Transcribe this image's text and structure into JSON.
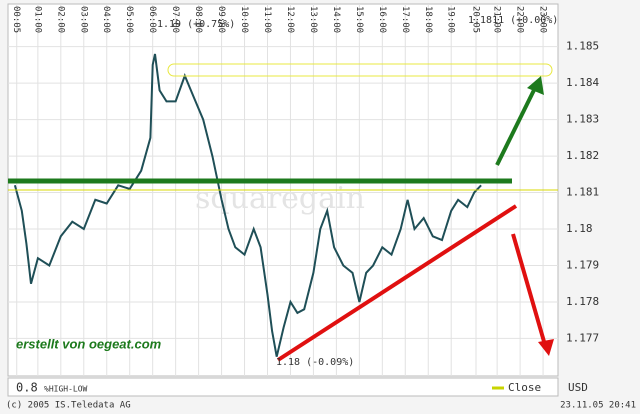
{
  "chart_data": {
    "type": "line",
    "x": [
      0,
      0.3,
      0.5,
      0.7,
      1.0,
      1.5,
      2.0,
      2.5,
      3.0,
      3.5,
      4.0,
      4.5,
      5.0,
      5.5,
      5.9,
      6.0,
      6.1,
      6.3,
      6.6,
      7.0,
      7.4,
      7.8,
      8.2,
      8.6,
      9.0,
      9.3,
      9.6,
      10.0,
      10.4,
      10.7,
      11.0,
      11.2,
      11.4,
      11.7,
      12.0,
      12.3,
      12.6,
      13.0,
      13.3,
      13.6,
      13.9,
      14.3,
      14.7,
      15.0,
      15.3,
      15.6,
      16.0,
      16.4,
      16.8,
      17.1,
      17.4,
      17.8,
      18.2,
      18.6,
      19.0,
      19.3,
      19.7,
      20.0,
      20.3
    ],
    "series": [
      {
        "name": "Close",
        "color": "#1f4f57",
        "values": [
          1.1812,
          1.1805,
          1.1796,
          1.1785,
          1.1792,
          1.179,
          1.1798,
          1.1802,
          1.18,
          1.1808,
          1.1807,
          1.1812,
          1.1811,
          1.1816,
          1.1825,
          1.1845,
          1.1848,
          1.1838,
          1.1835,
          1.1835,
          1.1842,
          1.1836,
          1.183,
          1.182,
          1.1808,
          1.18,
          1.1795,
          1.1793,
          1.18,
          1.1795,
          1.1782,
          1.1772,
          1.1765,
          1.1773,
          1.178,
          1.1777,
          1.1778,
          1.1788,
          1.18,
          1.1805,
          1.1795,
          1.179,
          1.1788,
          1.178,
          1.1788,
          1.179,
          1.1795,
          1.1793,
          1.18,
          1.1808,
          1.18,
          1.1803,
          1.1798,
          1.1797,
          1.1805,
          1.1808,
          1.1806,
          1.181,
          1.1812
        ]
      }
    ],
    "legend_marker_color": "#c8d400",
    "xlim": [
      -0.3,
      23.65
    ],
    "xticks": [
      {
        "value": 0.08,
        "label": "00:05"
      },
      {
        "value": 1,
        "label": "01:00"
      },
      {
        "value": 2,
        "label": "02:00"
      },
      {
        "value": 3,
        "label": "03:00"
      },
      {
        "value": 4,
        "label": "04:00"
      },
      {
        "value": 5,
        "label": "05:00"
      },
      {
        "value": 6,
        "label": "06:00"
      },
      {
        "value": 7,
        "label": "07:00"
      },
      {
        "value": 8,
        "label": "08:00"
      },
      {
        "value": 9,
        "label": "09:00"
      },
      {
        "value": 10,
        "label": "10:00"
      },
      {
        "value": 11,
        "label": "11:00"
      },
      {
        "value": 12,
        "label": "12:00"
      },
      {
        "value": 13,
        "label": "13:00"
      },
      {
        "value": 14,
        "label": "14:00"
      },
      {
        "value": 15,
        "label": "15:00"
      },
      {
        "value": 16,
        "label": "16:00"
      },
      {
        "value": 17,
        "label": "17:00"
      },
      {
        "value": 18,
        "label": "18:00"
      },
      {
        "value": 19,
        "label": "19:00"
      },
      {
        "value": 20.08,
        "label": "20:05"
      },
      {
        "value": 21,
        "label": "21:00"
      },
      {
        "value": 22,
        "label": "22:00"
      },
      {
        "value": 23,
        "label": "23:00"
      }
    ],
    "ylim": [
      1.17597,
      1.18617
    ],
    "yticks": [
      1.177,
      1.178,
      1.179,
      1.18,
      1.181,
      1.182,
      1.183,
      1.184,
      1.185
    ],
    "grid": true,
    "annotations": [
      "1.19 (+0.75%)",
      "1.18 (-0.09%)",
      "1.1811 (+0.00%)"
    ],
    "watermark": "squaregain",
    "note": "erstellt von oegeat.com",
    "indicator_value": "0.8",
    "indicator_name": "%HIGH-LOW",
    "currency": "USD",
    "copyright": "(c) 2005 IS.Teledata AG",
    "timestamp": "23.11.05 20:41"
  }
}
